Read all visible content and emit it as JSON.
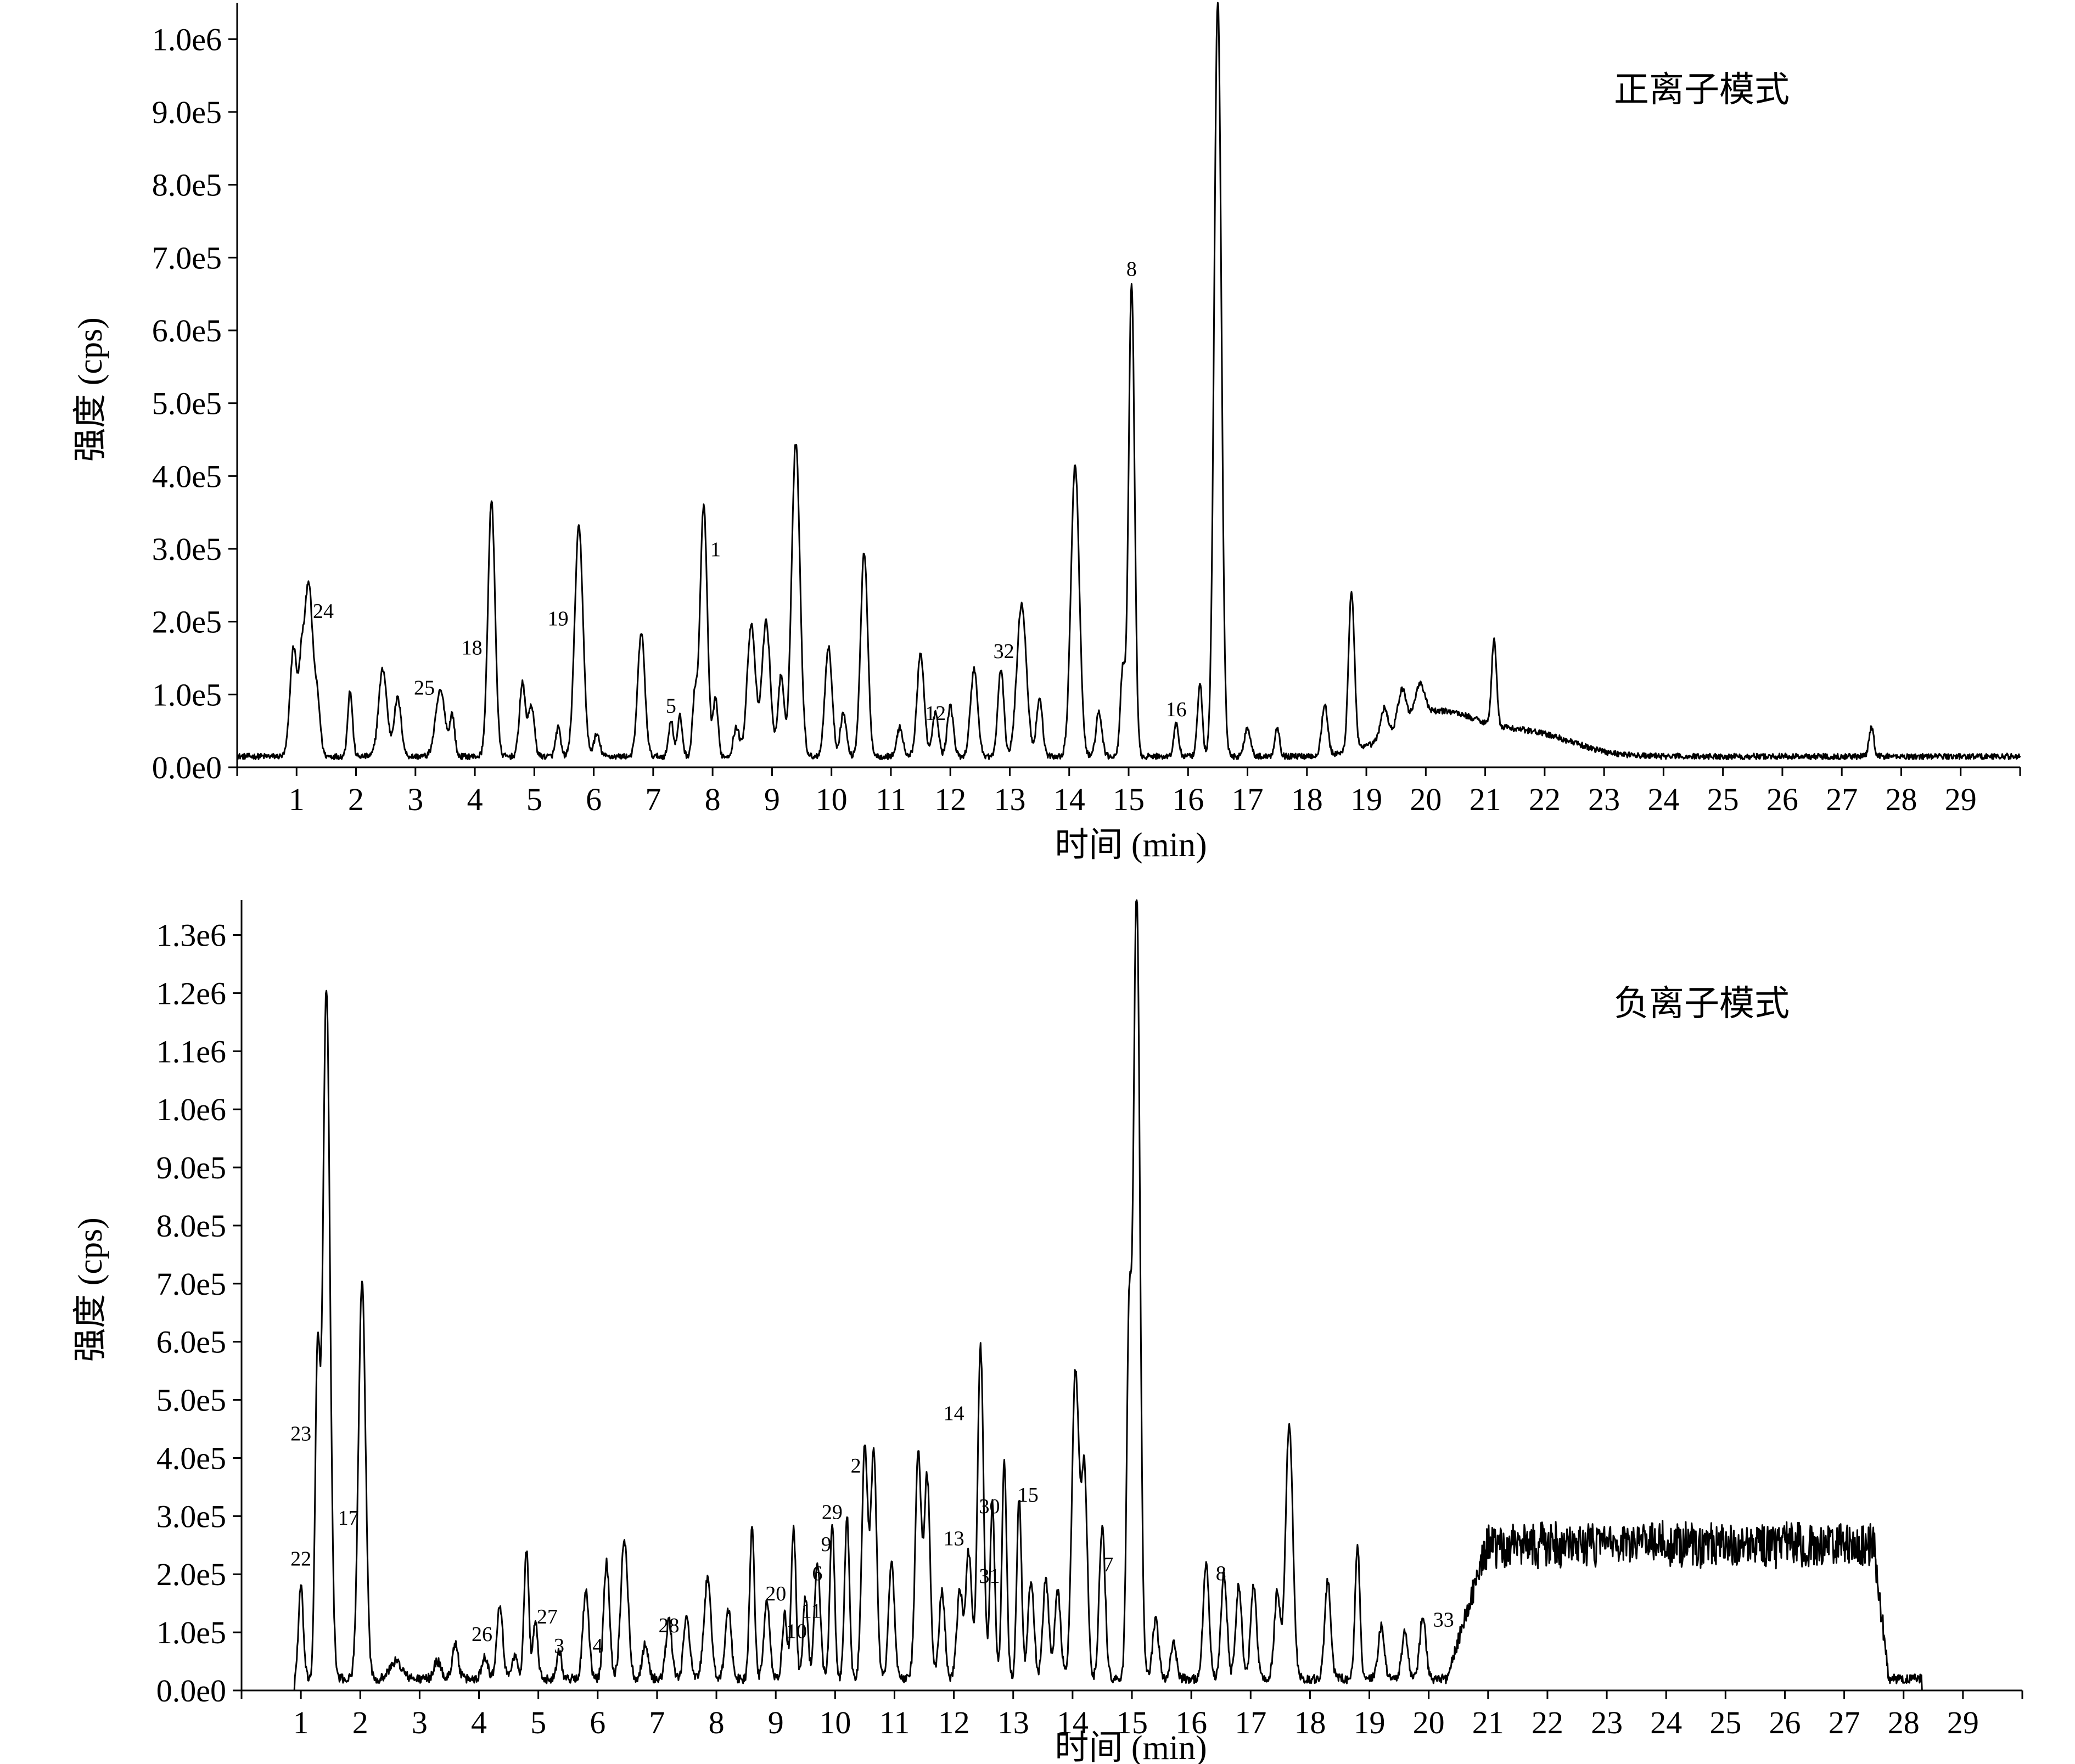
{
  "colors": {
    "background": "#ffffff",
    "trace": "#000000",
    "axis": "#000000"
  },
  "chart_data": [
    {
      "type": "line",
      "mode_label": "正离子模式",
      "xlabel": "时间 (min)",
      "ylabel": "强度 (cps)",
      "xlim": [
        0,
        30
      ],
      "ylim": [
        0,
        1050000
      ],
      "xticks": [
        1,
        2,
        3,
        4,
        5,
        6,
        7,
        8,
        9,
        10,
        11,
        12,
        13,
        14,
        15,
        16,
        17,
        18,
        19,
        20,
        21,
        22,
        23,
        24,
        25,
        26,
        27,
        28,
        29
      ],
      "xtick_labels": [
        "1",
        "2",
        "3",
        "4",
        "5",
        "6",
        "7",
        "8",
        "9",
        "10",
        "11",
        "12",
        "13",
        "14",
        "15",
        "16",
        "17",
        "18",
        "19",
        "20",
        "21",
        "22",
        "23",
        "24",
        "25",
        "26",
        "27",
        "28",
        "29"
      ],
      "yticks": [
        0,
        100000,
        200000,
        300000,
        400000,
        500000,
        600000,
        700000,
        800000,
        900000,
        1000000
      ],
      "ytick_labels": [
        "0.0e0",
        "1.0e5",
        "2.0e5",
        "3.0e5",
        "4.0e5",
        "5.0e5",
        "6.0e5",
        "7.0e5",
        "8.0e5",
        "9.0e5",
        "1.0e6"
      ],
      "baseline": 15000,
      "noise": 4000,
      "peaks": [
        [
          0.95,
          150000,
          0.06
        ],
        [
          1.08,
          90000,
          0.04
        ],
        [
          1.2,
          240000,
          0.07
        ],
        [
          1.35,
          70000,
          0.05
        ],
        [
          1.9,
          90000,
          0.04
        ],
        [
          2.45,
          120000,
          0.07
        ],
        [
          2.7,
          80000,
          0.06
        ],
        [
          3.42,
          90000,
          0.08
        ],
        [
          3.62,
          55000,
          0.04
        ],
        [
          4.28,
          350000,
          0.06
        ],
        [
          4.8,
          100000,
          0.05
        ],
        [
          4.95,
          70000,
          0.05
        ],
        [
          5.4,
          40000,
          0.04
        ],
        [
          5.75,
          315000,
          0.07
        ],
        [
          6.05,
          30000,
          0.05
        ],
        [
          6.8,
          170000,
          0.06
        ],
        [
          7.3,
          50000,
          0.04
        ],
        [
          7.45,
          55000,
          0.04
        ],
        [
          7.7,
          80000,
          0.04
        ],
        [
          7.85,
          345000,
          0.06
        ],
        [
          8.05,
          80000,
          0.04
        ],
        [
          8.4,
          40000,
          0.05
        ],
        [
          8.65,
          180000,
          0.07
        ],
        [
          8.9,
          185000,
          0.07
        ],
        [
          9.15,
          110000,
          0.05
        ],
        [
          9.4,
          430000,
          0.07
        ],
        [
          9.95,
          150000,
          0.06
        ],
        [
          10.2,
          60000,
          0.05
        ],
        [
          10.55,
          280000,
          0.06
        ],
        [
          11.15,
          40000,
          0.05
        ],
        [
          11.5,
          140000,
          0.06
        ],
        [
          11.75,
          60000,
          0.05
        ],
        [
          12.0,
          70000,
          0.05
        ],
        [
          12.4,
          120000,
          0.06
        ],
        [
          12.85,
          120000,
          0.05
        ],
        [
          13.2,
          210000,
          0.08
        ],
        [
          13.5,
          80000,
          0.05
        ],
        [
          14.1,
          400000,
          0.07
        ],
        [
          14.5,
          60000,
          0.05
        ],
        [
          14.9,
          120000,
          0.04
        ],
        [
          15.05,
          650000,
          0.05
        ],
        [
          15.8,
          45000,
          0.04
        ],
        [
          16.2,
          100000,
          0.04
        ],
        [
          16.5,
          1040000,
          0.06
        ],
        [
          17.0,
          40000,
          0.05
        ],
        [
          17.5,
          40000,
          0.04
        ],
        [
          18.3,
          70000,
          0.05
        ],
        [
          18.75,
          220000,
          0.05
        ],
        [
          19.3,
          40000,
          0.06
        ],
        [
          19.6,
          50000,
          0.07
        ],
        [
          19.9,
          45000,
          0.08
        ],
        [
          21.15,
          120000,
          0.04
        ],
        [
          27.5,
          40000,
          0.04
        ]
      ],
      "humps": [
        [
          20.2,
          60000,
          0.7
        ],
        [
          21.8,
          30000,
          0.7
        ]
      ],
      "peak_labels": [
        {
          "text": "24",
          "x": 1.45,
          "y": 205000
        },
        {
          "text": "25",
          "x": 3.15,
          "y": 100000
        },
        {
          "text": "18",
          "x": 3.95,
          "y": 155000
        },
        {
          "text": "19",
          "x": 5.4,
          "y": 195000
        },
        {
          "text": "5",
          "x": 7.3,
          "y": 75000
        },
        {
          "text": "1",
          "x": 8.05,
          "y": 290000
        },
        {
          "text": "12",
          "x": 11.75,
          "y": 65000
        },
        {
          "text": "32",
          "x": 12.9,
          "y": 150000
        },
        {
          "text": "8",
          "x": 15.05,
          "y": 675000
        },
        {
          "text": "16",
          "x": 15.8,
          "y": 70000
        }
      ]
    },
    {
      "type": "line",
      "mode_label": "负离子模式",
      "xlabel": "时间 (min)",
      "ylabel": "强度 (cps)",
      "xlim": [
        0,
        30
      ],
      "ylim": [
        0,
        1360000
      ],
      "xticks": [
        1,
        2,
        3,
        4,
        5,
        6,
        7,
        8,
        9,
        10,
        11,
        12,
        13,
        14,
        15,
        16,
        17,
        18,
        19,
        20,
        21,
        22,
        23,
        24,
        25,
        26,
        27,
        28,
        29
      ],
      "xtick_labels": [
        "1",
        "2",
        "3",
        "4",
        "5",
        "6",
        "7",
        "8",
        "9",
        "10",
        "11",
        "12",
        "13",
        "14",
        "15",
        "16",
        "17",
        "18",
        "19",
        "20",
        "21",
        "22",
        "23",
        "24",
        "25",
        "26",
        "27",
        "28",
        "29"
      ],
      "yticks": [
        0,
        100000,
        200000,
        300000,
        400000,
        500000,
        600000,
        700000,
        800000,
        900000,
        1000000,
        1100000,
        1200000,
        1300000
      ],
      "ytick_labels": [
        "0.0e0",
        "1.0e5",
        "2.0e5",
        "3.0e5",
        "4.0e5",
        "5.0e5",
        "6.0e5",
        "7.0e5",
        "8.0e5",
        "9.0e5",
        "1.0e6",
        "1.1e6",
        "1.2e6",
        "1.3e6"
      ],
      "baseline": 20000,
      "noise": 8000,
      "start_x": 0.9,
      "end_x": 28.3,
      "peaks": [
        [
          1.0,
          160000,
          0.04
        ],
        [
          1.28,
          540000,
          0.04
        ],
        [
          1.43,
          1190000,
          0.06
        ],
        [
          2.03,
          680000,
          0.06
        ],
        [
          2.6,
          30000,
          0.1
        ],
        [
          3.3,
          30000,
          0.06
        ],
        [
          3.6,
          60000,
          0.05
        ],
        [
          4.1,
          40000,
          0.05
        ],
        [
          4.35,
          130000,
          0.05
        ],
        [
          4.6,
          40000,
          0.05
        ],
        [
          4.8,
          220000,
          0.04
        ],
        [
          4.95,
          100000,
          0.04
        ],
        [
          5.35,
          50000,
          0.04
        ],
        [
          5.8,
          150000,
          0.05
        ],
        [
          6.15,
          200000,
          0.05
        ],
        [
          6.45,
          240000,
          0.06
        ],
        [
          6.8,
          60000,
          0.05
        ],
        [
          7.2,
          100000,
          0.05
        ],
        [
          7.5,
          110000,
          0.05
        ],
        [
          7.85,
          170000,
          0.06
        ],
        [
          8.2,
          120000,
          0.05
        ],
        [
          8.6,
          260000,
          0.04
        ],
        [
          8.85,
          130000,
          0.05
        ],
        [
          9.15,
          110000,
          0.04
        ],
        [
          9.3,
          260000,
          0.04
        ],
        [
          9.5,
          140000,
          0.04
        ],
        [
          9.7,
          200000,
          0.05
        ],
        [
          9.95,
          270000,
          0.04
        ],
        [
          10.2,
          280000,
          0.04
        ],
        [
          10.5,
          400000,
          0.05
        ],
        [
          10.65,
          390000,
          0.05
        ],
        [
          10.95,
          200000,
          0.05
        ],
        [
          11.4,
          390000,
          0.05
        ],
        [
          11.55,
          350000,
          0.05
        ],
        [
          11.8,
          150000,
          0.05
        ],
        [
          12.1,
          150000,
          0.05
        ],
        [
          12.25,
          220000,
          0.05
        ],
        [
          12.45,
          570000,
          0.05
        ],
        [
          12.65,
          300000,
          0.04
        ],
        [
          12.85,
          370000,
          0.04
        ],
        [
          13.1,
          310000,
          0.04
        ],
        [
          13.3,
          170000,
          0.05
        ],
        [
          13.55,
          170000,
          0.05
        ],
        [
          13.75,
          150000,
          0.05
        ],
        [
          14.05,
          530000,
          0.06
        ],
        [
          14.2,
          350000,
          0.05
        ],
        [
          14.5,
          260000,
          0.05
        ],
        [
          14.95,
          580000,
          0.04
        ],
        [
          15.08,
          1360000,
          0.055
        ],
        [
          15.4,
          100000,
          0.05
        ],
        [
          15.7,
          60000,
          0.05
        ],
        [
          16.25,
          200000,
          0.05
        ],
        [
          16.55,
          180000,
          0.05
        ],
        [
          16.8,
          160000,
          0.05
        ],
        [
          17.05,
          160000,
          0.05
        ],
        [
          17.45,
          150000,
          0.05
        ],
        [
          17.65,
          440000,
          0.06
        ],
        [
          18.3,
          170000,
          0.05
        ],
        [
          18.8,
          230000,
          0.04
        ],
        [
          19.2,
          90000,
          0.05
        ],
        [
          19.6,
          80000,
          0.05
        ],
        [
          19.9,
          110000,
          0.05
        ]
      ],
      "plateau": {
        "start": 20.3,
        "end": 21.0,
        "end_plateau": 27.5,
        "level": 230000,
        "noise": 35000
      },
      "peak_labels": [
        {
          "text": "23",
          "x": 1.0,
          "y": 430000
        },
        {
          "text": "22",
          "x": 1.0,
          "y": 215000
        },
        {
          "text": "17",
          "x": 1.8,
          "y": 285000
        },
        {
          "text": "26",
          "x": 4.05,
          "y": 85000
        },
        {
          "text": "27",
          "x": 5.15,
          "y": 115000
        },
        {
          "text": "3",
          "x": 5.35,
          "y": 65000
        },
        {
          "text": "4",
          "x": 6.0,
          "y": 65000
        },
        {
          "text": "28",
          "x": 7.2,
          "y": 100000
        },
        {
          "text": "20",
          "x": 9.0,
          "y": 155000
        },
        {
          "text": "10",
          "x": 9.35,
          "y": 90000
        },
        {
          "text": "11",
          "x": 9.6,
          "y": 125000
        },
        {
          "text": "6",
          "x": 9.7,
          "y": 190000
        },
        {
          "text": "9",
          "x": 9.85,
          "y": 240000
        },
        {
          "text": "29",
          "x": 9.95,
          "y": 295000
        },
        {
          "text": "2",
          "x": 10.35,
          "y": 375000
        },
        {
          "text": "14",
          "x": 12.0,
          "y": 465000
        },
        {
          "text": "13",
          "x": 12.0,
          "y": 250000
        },
        {
          "text": "30",
          "x": 12.6,
          "y": 305000
        },
        {
          "text": "31",
          "x": 12.6,
          "y": 185000
        },
        {
          "text": "15",
          "x": 13.25,
          "y": 325000
        },
        {
          "text": "7",
          "x": 14.6,
          "y": 205000
        },
        {
          "text": "8",
          "x": 16.5,
          "y": 190000
        },
        {
          "text": "33",
          "x": 20.25,
          "y": 110000
        }
      ]
    }
  ]
}
